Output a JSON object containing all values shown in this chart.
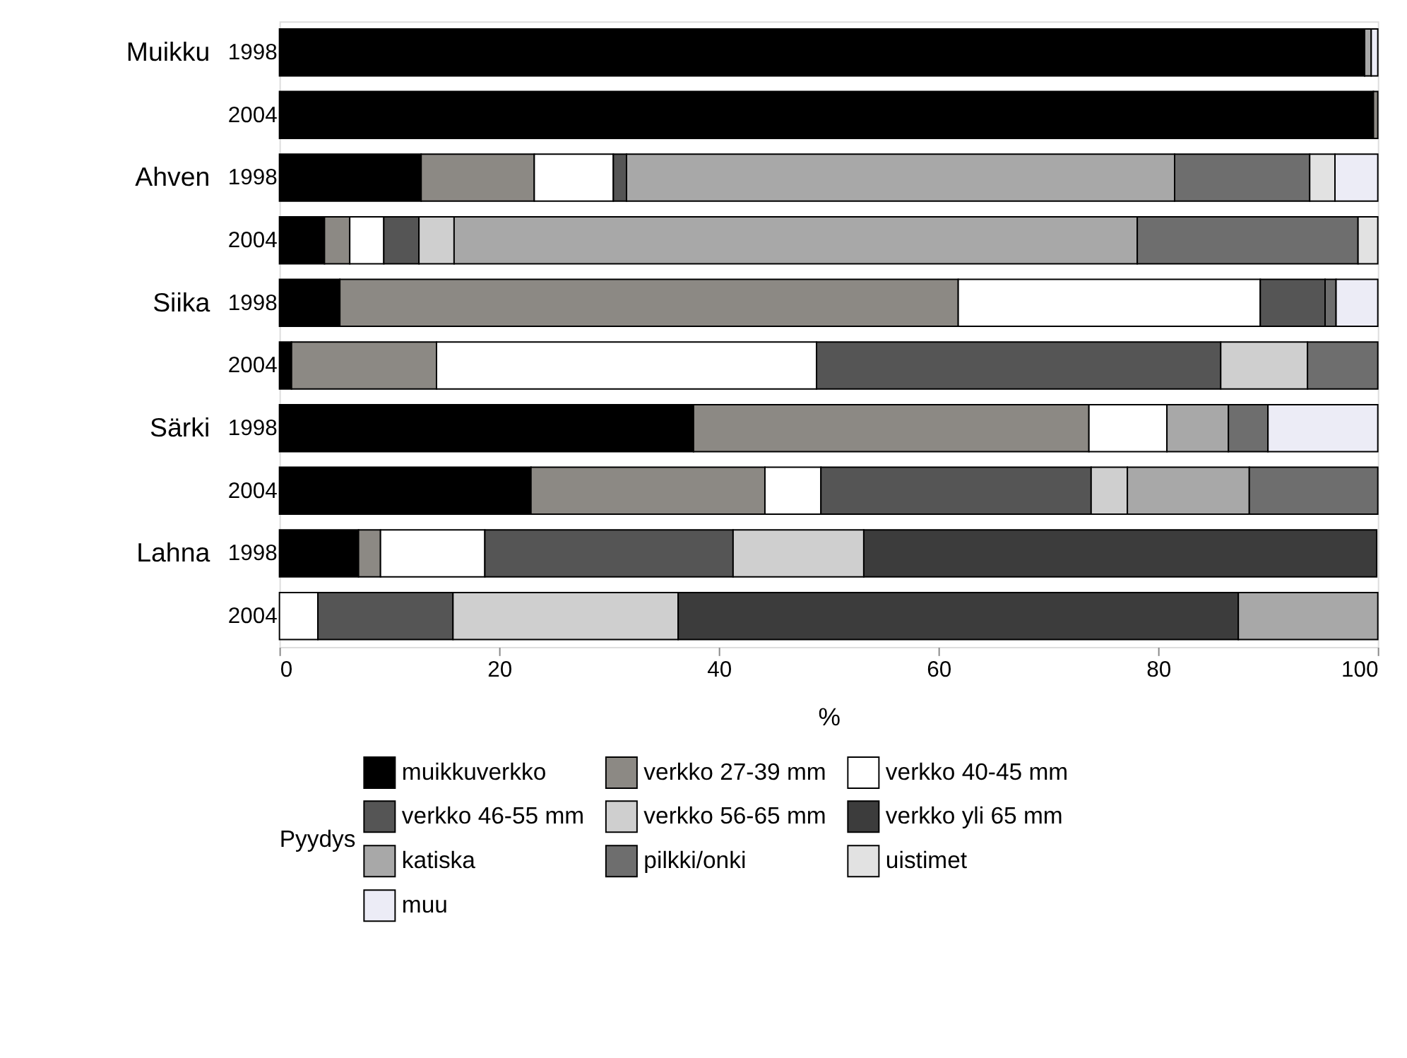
{
  "chart_data": {
    "type": "bar",
    "orientation": "horizontal",
    "stacked": true,
    "xlabel": "%",
    "legend_title": "Pyydys",
    "legend": "bottom",
    "grid": false,
    "categories": [
      "1998",
      "2004",
      "1998",
      "2004",
      "1998",
      "2004",
      "1998",
      "2004",
      "1998",
      "2004"
    ],
    "annotations": [
      "Muikku",
      "Ahven",
      "Siika",
      "Särki",
      "Lahna"
    ],
    "xlim": [
      0,
      100
    ],
    "xticks": [
      0,
      20,
      40,
      60,
      80,
      100
    ],
    "series": [
      {
        "name": "muikkuverkko",
        "color": "#000000",
        "values": [
          98.8,
          99.6,
          12.9,
          4.1,
          5.5,
          1.1,
          37.7,
          22.9,
          7.2,
          null
        ]
      },
      {
        "name": "verkko 27-39 mm",
        "color": "#8c8984",
        "values": [
          null,
          0.4,
          10.3,
          2.3,
          56.3,
          13.2,
          36.0,
          21.3,
          2.0,
          null
        ]
      },
      {
        "name": "verkko 40-45 mm",
        "color": "#ffffff",
        "values": [
          null,
          null,
          7.2,
          3.1,
          27.5,
          34.6,
          7.1,
          5.1,
          9.5,
          3.5
        ]
      },
      {
        "name": "verkko 46-55 mm",
        "color": "#555555",
        "values": [
          null,
          null,
          1.2,
          3.2,
          5.9,
          36.8,
          null,
          24.6,
          22.6,
          12.3
        ]
      },
      {
        "name": "verkko 56-65 mm",
        "color": "#cfcfcf",
        "values": [
          null,
          null,
          null,
          3.2,
          null,
          7.9,
          null,
          3.3,
          11.9,
          20.5
        ]
      },
      {
        "name": "verkko yli 65 mm",
        "color": "#3c3c3c",
        "values": [
          null,
          null,
          null,
          null,
          null,
          null,
          null,
          null,
          46.7,
          51.0
        ]
      },
      {
        "name": "katiska",
        "color": "#a8a8a8",
        "values": [
          0.6,
          null,
          49.9,
          62.2,
          null,
          null,
          5.6,
          11.1,
          null,
          12.7
        ]
      },
      {
        "name": "pilkki/onki",
        "color": "#6e6e6e",
        "values": [
          null,
          null,
          12.3,
          20.1,
          1.0,
          6.4,
          3.6,
          11.7,
          null,
          null
        ]
      },
      {
        "name": "uistimet",
        "color": "#e2e2e2",
        "values": [
          null,
          null,
          2.3,
          1.8,
          null,
          null,
          null,
          null,
          null,
          null
        ]
      },
      {
        "name": "muu",
        "color": "#ececf6",
        "values": [
          0.6,
          null,
          3.9,
          null,
          3.8,
          null,
          10.0,
          null,
          null,
          null
        ]
      }
    ]
  }
}
